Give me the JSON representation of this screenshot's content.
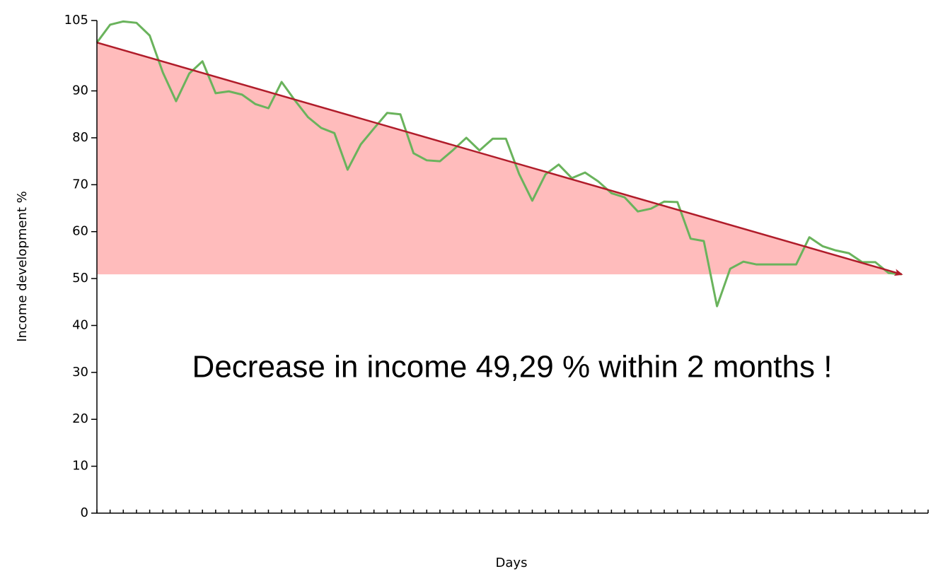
{
  "chart_data": {
    "type": "line",
    "x_label": "Days",
    "y_label": "Income development %",
    "annotation": "Decrease in income 49,29 % within 2 months !",
    "x": [
      0,
      1,
      2,
      3,
      4,
      5,
      6,
      7,
      8,
      9,
      10,
      11,
      12,
      13,
      14,
      15,
      16,
      17,
      18,
      19,
      20,
      21,
      22,
      23,
      24,
      25,
      26,
      27,
      28,
      29,
      30,
      31,
      32,
      33,
      34,
      35,
      36,
      37,
      38,
      39,
      40,
      41,
      42,
      43,
      44,
      45,
      46,
      47,
      48,
      49,
      50,
      51,
      52,
      53,
      54,
      55,
      56,
      57,
      58,
      59,
      60,
      61
    ],
    "series": [
      {
        "color": "#6ab35c",
        "values": [
          100.3,
          104.1,
          104.8,
          104.5,
          101.8,
          93.9,
          87.8,
          93.7,
          96.3,
          89.5,
          89.9,
          89.2,
          87.2,
          86.3,
          91.9,
          88.0,
          84.4,
          82.1,
          81.0,
          73.2,
          78.6,
          82.0,
          85.3,
          85.0,
          76.7,
          75.2,
          75.0,
          77.4,
          80.0,
          77.3,
          79.8,
          79.8,
          72.3,
          66.6,
          72.2,
          74.3,
          71.4,
          72.6,
          70.7,
          68.2,
          67.3,
          64.3,
          64.9,
          66.4,
          66.3,
          58.5,
          58.0,
          44.1,
          52.1,
          53.6,
          53.0,
          53.0,
          53.0,
          53.0,
          58.8,
          56.9,
          56.0,
          55.4,
          53.5,
          53.5,
          51.2,
          50.9
        ]
      }
    ],
    "trend": {
      "x": [
        0,
        61
      ],
      "values": [
        100.3,
        50.9
      ],
      "color": "#b01c2a",
      "area_color": "#ffbcbc"
    },
    "xlim": [
      0,
      63
    ],
    "xticks": [
      0,
      1,
      2,
      3,
      4,
      5,
      6,
      7,
      8,
      9,
      10,
      11,
      12,
      13,
      14,
      15,
      16,
      17,
      18,
      19,
      20,
      21,
      22,
      23,
      24,
      25,
      26,
      27,
      28,
      29,
      30,
      31,
      32,
      33,
      34,
      35,
      36,
      37,
      38,
      39,
      40,
      41,
      42,
      43,
      44,
      45,
      46,
      47,
      48,
      49,
      50,
      51,
      52,
      53,
      54,
      55,
      56,
      57,
      58,
      59,
      60,
      61,
      62,
      63
    ],
    "ylim": [
      0,
      105
    ],
    "yticks": [
      0,
      10,
      20,
      30,
      40,
      50,
      60,
      70,
      80,
      90,
      105
    ]
  }
}
